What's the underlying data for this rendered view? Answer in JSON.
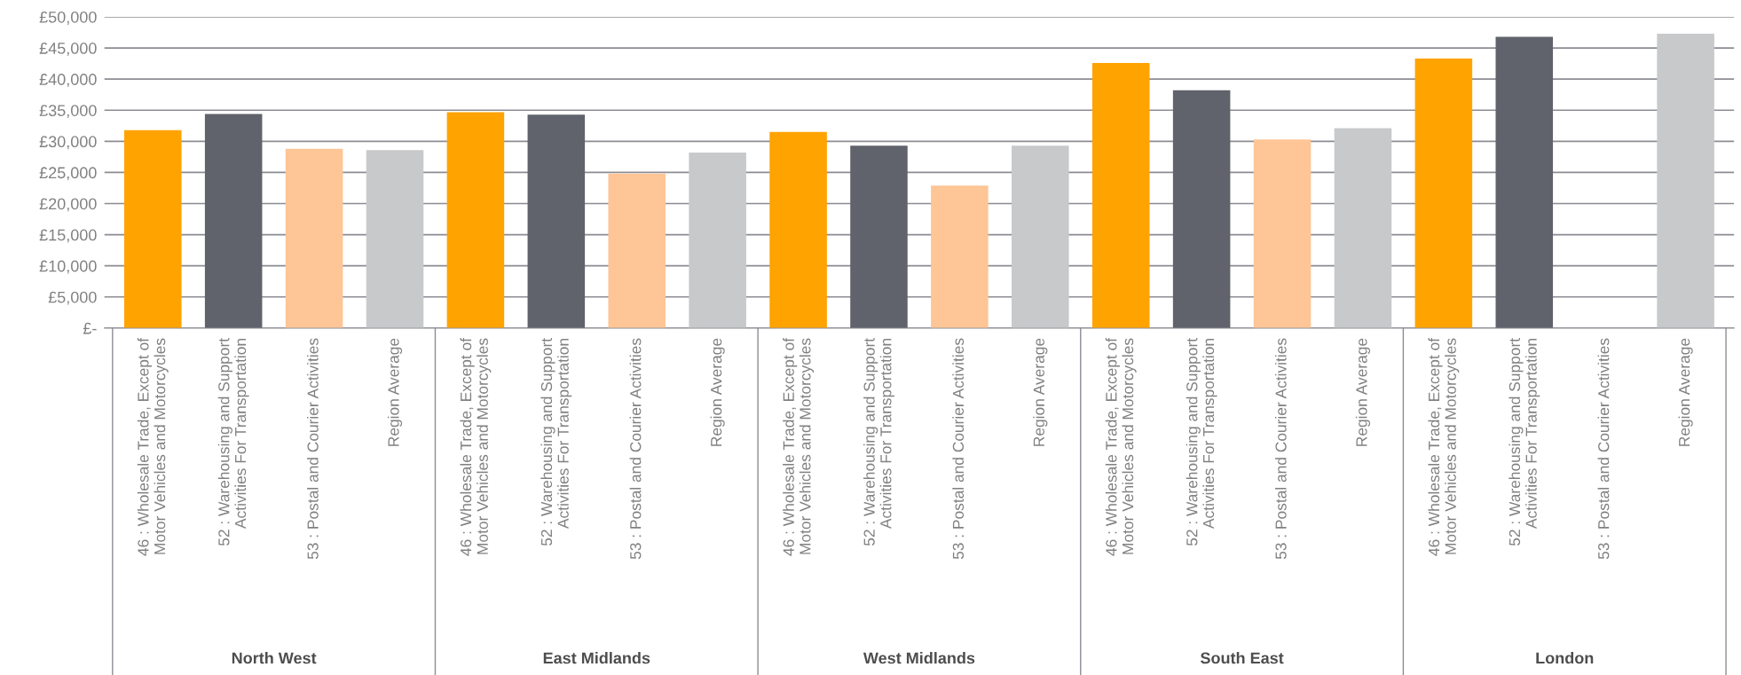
{
  "chart_data": {
    "type": "bar",
    "categories": [
      "46 : Wholesale Trade, Except of\nMotor Vehicles and Motorcycles",
      "52 : Warehousing and Support\nActivities For Transportation",
      "53 : Postal and Courier Activities",
      "Region Average",
      "46 : Wholesale Trade, Except of\nMotor Vehicles and Motorcycles",
      "52 : Warehousing and Support\nActivities For Transportation",
      "53 : Postal and Courier Activities",
      "Region Average",
      "46 : Wholesale Trade, Except of\nMotor Vehicles and Motorcycles",
      "52 : Warehousing and Support\nActivities For Transportation",
      "53 : Postal and Courier Activities",
      "Region Average",
      "46 : Wholesale Trade, Except of\nMotor Vehicles and Motorcycles",
      "52 : Warehousing and Support\nActivities For Transportation",
      "53 : Postal and Courier Activities",
      "Region Average",
      "46 : Wholesale Trade, Except of\nMotor Vehicles and Motorcycles",
      "52 : Warehousing and Support\nActivities For Transportation",
      "53 : Postal and Courier Activities",
      "Region Average"
    ],
    "values": [
      31800,
      34400,
      28800,
      28600,
      34700,
      34300,
      24800,
      28200,
      31500,
      29300,
      22900,
      29300,
      42600,
      38200,
      30300,
      32100,
      43300,
      46800,
      null,
      47300
    ],
    "colors": [
      "#ffa300",
      "#60636b",
      "#fec596",
      "#c8c9cb",
      "#ffa300",
      "#60636b",
      "#fec596",
      "#c8c9cb",
      "#ffa300",
      "#60636b",
      "#fec596",
      "#c8c9cb",
      "#ffa300",
      "#60636b",
      "#fec596",
      "#c8c9cb",
      "#ffa300",
      "#60636b",
      "#fec596",
      "#c8c9cb"
    ],
    "annotations": [
      "North West",
      "East Midlands",
      "West Midlands",
      "South East",
      "London"
    ],
    "ylim": [
      0,
      50000
    ],
    "yticks": [
      {
        "value": 0,
        "label": "£-"
      },
      {
        "value": 5000,
        "label": "£5,000"
      },
      {
        "value": 10000,
        "label": "£10,000"
      },
      {
        "value": 15000,
        "label": "£15,000"
      },
      {
        "value": 20000,
        "label": "£20,000"
      },
      {
        "value": 25000,
        "label": "£25,000"
      },
      {
        "value": 30000,
        "label": "£30,000"
      },
      {
        "value": 35000,
        "label": "£35,000"
      },
      {
        "value": 40000,
        "label": "£40,000"
      },
      {
        "value": 45000,
        "label": "£45,000"
      },
      {
        "value": 50000,
        "label": "£50,000"
      }
    ],
    "grid": "y"
  }
}
